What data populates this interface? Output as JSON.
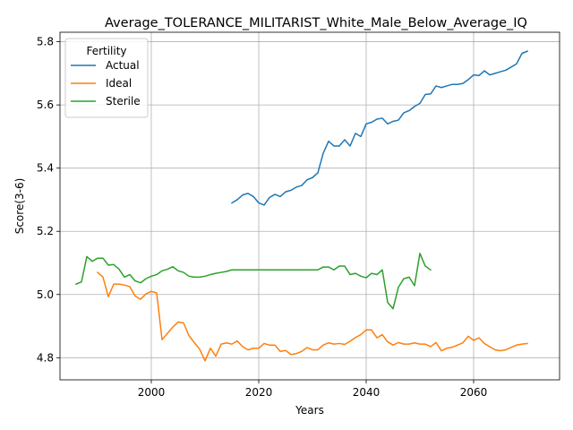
{
  "chart_data": {
    "type": "line",
    "title": "Average_TOLERANCE_MILITARIST_White_Male_Below_Average_IQ",
    "xlabel": "Years",
    "ylabel": "Score(3-6)",
    "xlim": [
      1983,
      2076
    ],
    "ylim": [
      4.73,
      5.83
    ],
    "xticks": [
      2000,
      2020,
      2040,
      2060
    ],
    "yticks": [
      4.8,
      5.0,
      5.2,
      5.4,
      5.6,
      5.8
    ],
    "ytick_labels": [
      "4.8",
      "5.0",
      "5.2",
      "5.4",
      "5.6",
      "5.8"
    ],
    "grid": true,
    "legend": {
      "title": "Fertility",
      "placement": "top-left"
    },
    "series": [
      {
        "name": "Actual",
        "color": "#1f77b4",
        "x": [
          2015,
          2016,
          2017,
          2018,
          2019,
          2020,
          2021,
          2022,
          2023,
          2024,
          2025,
          2026,
          2027,
          2028,
          2029,
          2030,
          2031,
          2032,
          2033,
          2034,
          2035,
          2036,
          2037,
          2038,
          2039,
          2040,
          2041,
          2042,
          2043,
          2044,
          2045,
          2046,
          2047,
          2048,
          2049,
          2050,
          2051,
          2052,
          2053,
          2054,
          2055,
          2056,
          2057,
          2058,
          2059,
          2060,
          2061,
          2062,
          2063,
          2064,
          2065,
          2066,
          2067,
          2068,
          2069,
          2070
        ],
        "y": [
          5.29,
          5.3,
          5.315,
          5.32,
          5.31,
          5.29,
          5.283,
          5.307,
          5.317,
          5.31,
          5.325,
          5.33,
          5.34,
          5.345,
          5.363,
          5.37,
          5.385,
          5.447,
          5.485,
          5.47,
          5.47,
          5.49,
          5.47,
          5.51,
          5.5,
          5.54,
          5.545,
          5.555,
          5.558,
          5.54,
          5.548,
          5.552,
          5.575,
          5.582,
          5.595,
          5.605,
          5.633,
          5.635,
          5.66,
          5.655,
          5.66,
          5.665,
          5.665,
          5.668,
          5.68,
          5.695,
          5.693,
          5.708,
          5.695,
          5.7,
          5.705,
          5.71,
          5.72,
          5.73,
          5.763,
          5.77
        ]
      },
      {
        "name": "Ideal",
        "color": "#ff7f0e",
        "x": [
          1990,
          1991,
          1992,
          1993,
          1994,
          1995,
          1996,
          1997,
          1998,
          1999,
          2000,
          2001,
          2002,
          2003,
          2004,
          2005,
          2006,
          2007,
          2008,
          2009,
          2010,
          2011,
          2012,
          2013,
          2014,
          2015,
          2016,
          2017,
          2018,
          2019,
          2020,
          2021,
          2022,
          2023,
          2024,
          2025,
          2026,
          2027,
          2028,
          2029,
          2030,
          2031,
          2032,
          2033,
          2034,
          2035,
          2036,
          2037,
          2038,
          2039,
          2040,
          2041,
          2042,
          2043,
          2044,
          2045,
          2046,
          2047,
          2048,
          2049,
          2050,
          2051,
          2052,
          2053,
          2054,
          2055,
          2056,
          2057,
          2058,
          2059,
          2060,
          2061,
          2062,
          2063,
          2064,
          2065,
          2066,
          2067,
          2068,
          2069,
          2070
        ],
        "y": [
          5.07,
          5.055,
          4.993,
          5.033,
          5.033,
          5.03,
          5.025,
          4.995,
          4.985,
          5.002,
          5.01,
          5.005,
          4.857,
          4.877,
          4.897,
          4.913,
          4.91,
          4.87,
          4.848,
          4.827,
          4.79,
          4.83,
          4.805,
          4.843,
          4.847,
          4.843,
          4.853,
          4.835,
          4.825,
          4.83,
          4.83,
          4.845,
          4.84,
          4.84,
          4.82,
          4.823,
          4.81,
          4.813,
          4.82,
          4.832,
          4.825,
          4.825,
          4.84,
          4.847,
          4.843,
          4.845,
          4.842,
          4.852,
          4.864,
          4.873,
          4.888,
          4.888,
          4.863,
          4.873,
          4.85,
          4.84,
          4.848,
          4.843,
          4.843,
          4.847,
          4.843,
          4.843,
          4.835,
          4.848,
          4.822,
          4.83,
          4.833,
          4.84,
          4.847,
          4.868,
          4.855,
          4.863,
          4.845,
          4.835,
          4.825,
          4.822,
          4.825,
          4.833,
          4.84,
          4.843,
          4.845
        ]
      },
      {
        "name": "Sterile",
        "color": "#2ca02c",
        "x": [
          1986,
          1987,
          1988,
          1989,
          1990,
          1991,
          1992,
          1993,
          1994,
          1995,
          1996,
          1997,
          1998,
          1999,
          2000,
          2001,
          2002,
          2003,
          2004,
          2005,
          2006,
          2007,
          2008,
          2009,
          2010,
          2011,
          2012,
          2013,
          2014,
          2015,
          2016,
          2017,
          2018,
          2019,
          2020,
          2021,
          2022,
          2023,
          2024,
          2025,
          2026,
          2027,
          2028,
          2029,
          2030,
          2031,
          2032,
          2033,
          2034,
          2035,
          2036,
          2037,
          2038,
          2039,
          2040,
          2041,
          2042,
          2043,
          2044,
          2045,
          2046,
          2047,
          2048,
          2049,
          2050,
          2051,
          2052
        ],
        "y": [
          5.033,
          5.04,
          5.12,
          5.105,
          5.115,
          5.115,
          5.093,
          5.095,
          5.08,
          5.055,
          5.063,
          5.043,
          5.037,
          5.05,
          5.058,
          5.063,
          5.075,
          5.08,
          5.088,
          5.075,
          5.07,
          5.058,
          5.055,
          5.055,
          5.058,
          5.063,
          5.067,
          5.07,
          5.073,
          5.078,
          5.078,
          5.078,
          5.078,
          5.078,
          5.078,
          5.078,
          5.078,
          5.078,
          5.078,
          5.078,
          5.078,
          5.078,
          5.078,
          5.078,
          5.078,
          5.078,
          5.087,
          5.087,
          5.078,
          5.09,
          5.09,
          5.063,
          5.067,
          5.058,
          5.053,
          5.067,
          5.063,
          5.078,
          4.975,
          4.955,
          5.023,
          5.05,
          5.055,
          5.028,
          5.13,
          5.09,
          5.078
        ]
      }
    ]
  }
}
